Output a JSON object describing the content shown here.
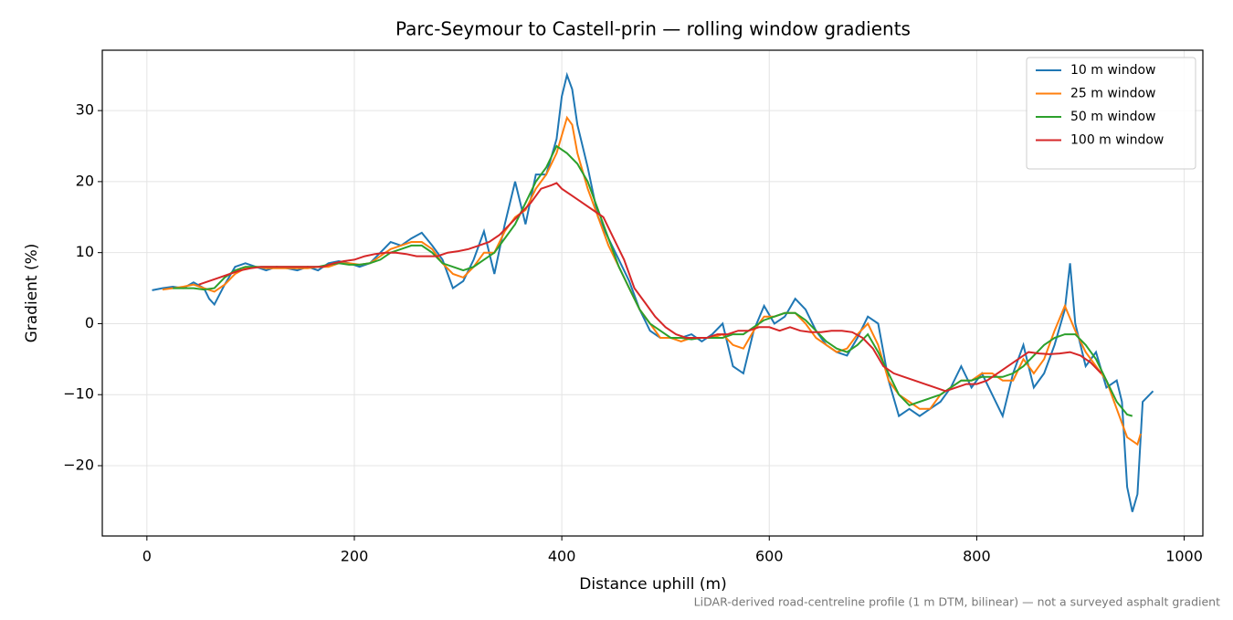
{
  "chart_data": {
    "type": "line",
    "title": "Parc-Seymour to Castell-prin — rolling window gradients",
    "xlabel": "Distance uphill (m)",
    "ylabel": "Gradient (%)",
    "footnote": "LiDAR-derived road-centreline profile (1 m DTM, bilinear) — not a surveyed asphalt gradient",
    "xlim": [
      -43,
      1018
    ],
    "ylim": [
      -29.9,
      38.5
    ],
    "xticks": [
      0,
      200,
      400,
      600,
      800,
      1000
    ],
    "yticks": [
      {
        "value": -20,
        "label": "−20"
      },
      {
        "value": -10,
        "label": "−10"
      },
      0,
      10,
      20,
      30
    ],
    "grid": true,
    "legend": "upper right",
    "series": [
      {
        "name": "10 m window",
        "color": "#1f77b4",
        "x": [
          5,
          15,
          25,
          35,
          45,
          55,
          60,
          65,
          75,
          85,
          95,
          105,
          115,
          125,
          135,
          145,
          155,
          165,
          175,
          185,
          195,
          205,
          215,
          225,
          235,
          245,
          255,
          265,
          275,
          285,
          295,
          305,
          315,
          325,
          335,
          345,
          355,
          365,
          375,
          385,
          395,
          400,
          405,
          410,
          415,
          425,
          435,
          445,
          455,
          465,
          475,
          485,
          495,
          505,
          515,
          525,
          535,
          545,
          555,
          565,
          575,
          585,
          595,
          605,
          615,
          625,
          635,
          645,
          655,
          665,
          675,
          685,
          695,
          705,
          715,
          725,
          735,
          745,
          755,
          765,
          775,
          785,
          795,
          805,
          815,
          825,
          835,
          845,
          855,
          865,
          875,
          885,
          890,
          895,
          905,
          915,
          925,
          935,
          940,
          945,
          950,
          955,
          960,
          970
        ],
        "values": [
          4.7,
          5,
          5.2,
          5,
          5.8,
          5,
          3.5,
          2.7,
          5.5,
          8,
          8.5,
          8,
          7.5,
          8,
          7.8,
          7.5,
          8,
          7.5,
          8.5,
          8.8,
          8.5,
          8,
          8.5,
          10,
          11.5,
          11,
          12,
          12.8,
          11,
          9,
          5,
          6,
          9,
          13,
          7,
          14,
          20,
          14,
          21,
          21,
          26,
          32,
          35,
          33,
          28,
          22,
          15,
          12,
          9,
          6,
          2,
          -1,
          -2,
          -2,
          -2,
          -1.5,
          -2.5,
          -1.5,
          0,
          -6,
          -7,
          -1,
          2.5,
          0,
          1,
          3.5,
          2,
          -1,
          -3,
          -4,
          -4.5,
          -2,
          1,
          0,
          -8,
          -13,
          -12,
          -13,
          -12,
          -11,
          -9,
          -6,
          -9,
          -7,
          -10,
          -13,
          -7,
          -3,
          -9,
          -7,
          -3,
          2,
          8.5,
          0,
          -6,
          -4,
          -9,
          -8,
          -11,
          -23,
          -26.5,
          -24,
          -11,
          -9.5
        ]
      },
      {
        "name": "25 m window",
        "color": "#ff7f0e",
        "x": [
          15,
          25,
          35,
          45,
          55,
          65,
          75,
          85,
          95,
          105,
          115,
          125,
          135,
          145,
          155,
          165,
          175,
          185,
          195,
          205,
          215,
          225,
          235,
          245,
          255,
          265,
          275,
          285,
          295,
          305,
          315,
          325,
          335,
          345,
          355,
          365,
          375,
          385,
          395,
          405,
          410,
          415,
          425,
          435,
          445,
          455,
          465,
          475,
          485,
          495,
          505,
          515,
          525,
          535,
          545,
          555,
          565,
          575,
          585,
          595,
          605,
          615,
          625,
          635,
          645,
          655,
          665,
          675,
          685,
          695,
          705,
          715,
          725,
          735,
          745,
          755,
          765,
          775,
          785,
          795,
          805,
          815,
          825,
          835,
          845,
          855,
          865,
          875,
          885,
          895,
          905,
          915,
          925,
          935,
          945,
          955,
          958
        ],
        "values": [
          4.8,
          5,
          5.2,
          5.5,
          5,
          4.5,
          5.5,
          7,
          7.8,
          8,
          7.8,
          7.8,
          7.8,
          7.8,
          7.8,
          8,
          8,
          8.5,
          8.5,
          8.3,
          8.5,
          9.5,
          10.5,
          11,
          11.5,
          11.5,
          10.5,
          8.5,
          7,
          6.5,
          8,
          10,
          10,
          13,
          15,
          16,
          19,
          21,
          24,
          29,
          28,
          24,
          19,
          15,
          11,
          8,
          5,
          2,
          0,
          -2,
          -2,
          -2.5,
          -2,
          -2,
          -2,
          -1.5,
          -3,
          -3.5,
          -1,
          1,
          1,
          1.5,
          1.5,
          0,
          -2,
          -3,
          -4,
          -3.5,
          -1.5,
          0,
          -3,
          -8,
          -10,
          -11,
          -12,
          -12,
          -10,
          -9,
          -8,
          -8,
          -7,
          -7,
          -8,
          -8,
          -5,
          -7,
          -5,
          -1,
          2.5,
          -1,
          -4,
          -6,
          -8,
          -12,
          -16,
          -17,
          -15.5
        ]
      },
      {
        "name": "50 m window",
        "color": "#2ca02c",
        "x": [
          25,
          35,
          45,
          55,
          65,
          75,
          85,
          95,
          105,
          115,
          125,
          135,
          145,
          155,
          165,
          175,
          185,
          195,
          205,
          215,
          225,
          235,
          245,
          255,
          265,
          275,
          285,
          295,
          305,
          315,
          325,
          335,
          345,
          355,
          365,
          375,
          385,
          395,
          405,
          415,
          425,
          435,
          445,
          455,
          465,
          475,
          485,
          495,
          505,
          515,
          525,
          535,
          545,
          555,
          565,
          575,
          585,
          595,
          605,
          615,
          625,
          635,
          645,
          655,
          665,
          675,
          685,
          695,
          705,
          715,
          725,
          735,
          745,
          755,
          765,
          775,
          785,
          795,
          805,
          815,
          825,
          835,
          845,
          855,
          865,
          875,
          885,
          895,
          905,
          915,
          925,
          935,
          945,
          950
        ],
        "values": [
          5,
          5,
          5,
          4.8,
          5,
          6.5,
          7.5,
          8,
          8,
          8,
          8,
          8,
          8,
          8,
          8,
          8.3,
          8.5,
          8.3,
          8.3,
          8.5,
          9,
          10,
          10.5,
          11,
          11,
          10,
          8.5,
          8,
          7.5,
          8,
          9,
          10,
          12,
          14,
          17,
          20,
          22,
          25,
          24,
          22.5,
          20,
          16,
          12,
          8,
          5,
          2,
          0,
          -1,
          -2,
          -2,
          -2.2,
          -2,
          -2,
          -2,
          -1.5,
          -1.5,
          -0.5,
          0.5,
          1,
          1.5,
          1.5,
          0.5,
          -1,
          -2.5,
          -3.5,
          -4,
          -3,
          -1.5,
          -4,
          -7,
          -10,
          -11.5,
          -11,
          -10.5,
          -10,
          -9,
          -8,
          -8,
          -7.5,
          -7.5,
          -7.5,
          -7,
          -6,
          -4.5,
          -3,
          -2,
          -1.5,
          -1.5,
          -3,
          -5,
          -8,
          -11,
          -12.8,
          -13
        ]
      },
      {
        "name": "100 m window",
        "color": "#d62728",
        "x": [
          50,
          60,
          70,
          80,
          90,
          100,
          110,
          120,
          130,
          140,
          150,
          160,
          170,
          180,
          190,
          200,
          210,
          220,
          230,
          240,
          250,
          260,
          270,
          280,
          290,
          300,
          310,
          320,
          330,
          340,
          350,
          360,
          370,
          380,
          390,
          395,
          400,
          410,
          420,
          430,
          440,
          450,
          460,
          470,
          480,
          490,
          500,
          510,
          520,
          530,
          540,
          550,
          560,
          570,
          580,
          590,
          600,
          610,
          620,
          630,
          640,
          650,
          660,
          670,
          680,
          690,
          700,
          710,
          720,
          730,
          740,
          750,
          760,
          770,
          780,
          790,
          800,
          810,
          820,
          830,
          840,
          850,
          860,
          870,
          880,
          890,
          900,
          910,
          920
        ],
        "values": [
          5.5,
          6,
          6.5,
          7,
          7.5,
          7.8,
          8,
          8,
          8,
          8,
          8,
          8,
          8,
          8.5,
          8.8,
          9,
          9.5,
          9.8,
          10,
          10,
          9.8,
          9.5,
          9.5,
          9.5,
          10,
          10.2,
          10.5,
          11,
          11.5,
          12.5,
          14,
          15.5,
          17,
          19,
          19.5,
          19.8,
          19,
          18,
          17,
          16,
          15,
          12,
          9,
          5,
          3,
          1,
          -0.5,
          -1.5,
          -2,
          -2,
          -2,
          -1.5,
          -1.5,
          -1,
          -1,
          -0.5,
          -0.5,
          -1,
          -0.5,
          -1,
          -1.2,
          -1.2,
          -1,
          -1,
          -1.2,
          -2,
          -3.5,
          -6,
          -7,
          -7.5,
          -8,
          -8.5,
          -9,
          -9.5,
          -9,
          -8.5,
          -8.5,
          -8,
          -7,
          -6,
          -5,
          -4,
          -4.2,
          -4.3,
          -4.2,
          -4,
          -4.5,
          -5.5,
          -7
        ]
      }
    ]
  }
}
